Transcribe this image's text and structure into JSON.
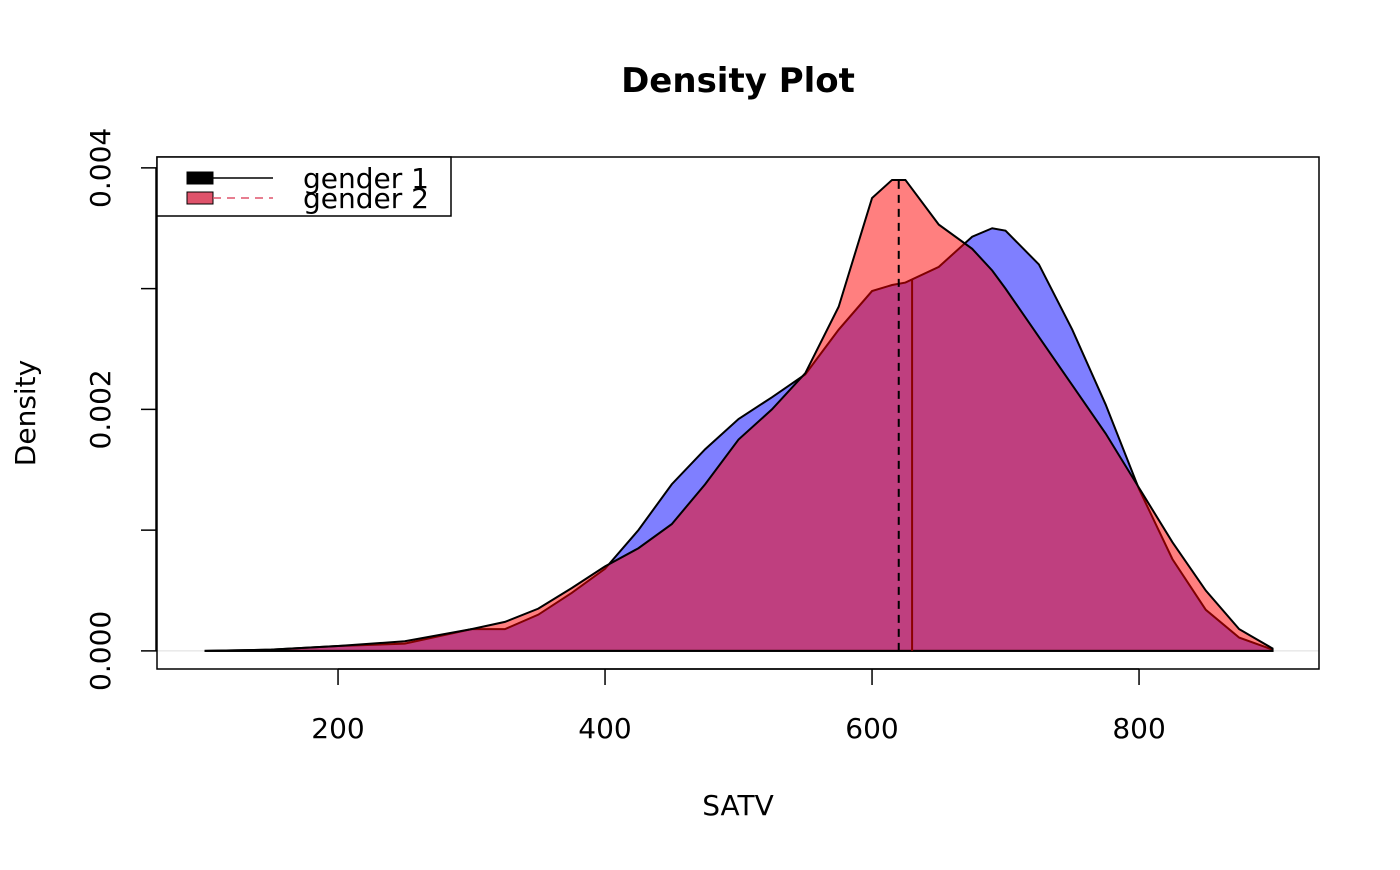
{
  "chart_data": {
    "type": "density",
    "title": "Density Plot",
    "x_label": "SATV",
    "y_label": "Density",
    "x": [
      100,
      150,
      200,
      250,
      300,
      325,
      350,
      375,
      400,
      425,
      450,
      475,
      500,
      525,
      550,
      575,
      600,
      615,
      625,
      650,
      675,
      690,
      700,
      725,
      750,
      775,
      800,
      825,
      850,
      875,
      900
    ],
    "series": [
      {
        "name": "gender 1",
        "color": "#0000ff",
        "legend_color": "#000000",
        "median": 630,
        "median_color": "#8b0000",
        "median_dash": false,
        "values": [
          0,
          1e-05,
          4e-05,
          6e-05,
          0.00018,
          0.00018,
          0.0003,
          0.00048,
          0.00068,
          0.001,
          0.00138,
          0.00167,
          0.00192,
          0.0021,
          0.00229,
          0.00266,
          0.00298,
          0.00303,
          0.00305,
          0.00318,
          0.00343,
          0.0035,
          0.00348,
          0.0032,
          0.00266,
          0.00204,
          0.00134,
          0.00076,
          0.00034,
          0.00011,
          1e-05
        ]
      },
      {
        "name": "gender 2",
        "color": "#ff0000",
        "legend_color": "#df536b",
        "median": 620,
        "median_color": "#000000",
        "median_dash": true,
        "values": [
          0,
          1e-05,
          4e-05,
          8e-05,
          0.00018,
          0.00024,
          0.00035,
          0.00052,
          0.0007,
          0.00085,
          0.00105,
          0.00138,
          0.00175,
          0.002,
          0.0023,
          0.00285,
          0.00375,
          0.0039,
          0.0039,
          0.00353,
          0.00333,
          0.00315,
          0.003,
          0.0026,
          0.0022,
          0.0018,
          0.00135,
          0.0009,
          0.0005,
          0.00018,
          2e-05
        ]
      }
    ],
    "xlim": [
      64.4,
      934.8
    ],
    "xticks": [
      200,
      400,
      600,
      800
    ],
    "ylim": [
      -0.00015,
      0.00409
    ],
    "yticks": [
      {
        "value": 0,
        "label": "0.000"
      },
      {
        "value": 0.001,
        "label": null
      },
      {
        "value": 0.002,
        "label": "0.002"
      },
      {
        "value": 0.003,
        "label": null
      },
      {
        "value": 0.004,
        "label": "0.004"
      }
    ],
    "fill_alpha": 0.5,
    "legend": "top-left"
  }
}
